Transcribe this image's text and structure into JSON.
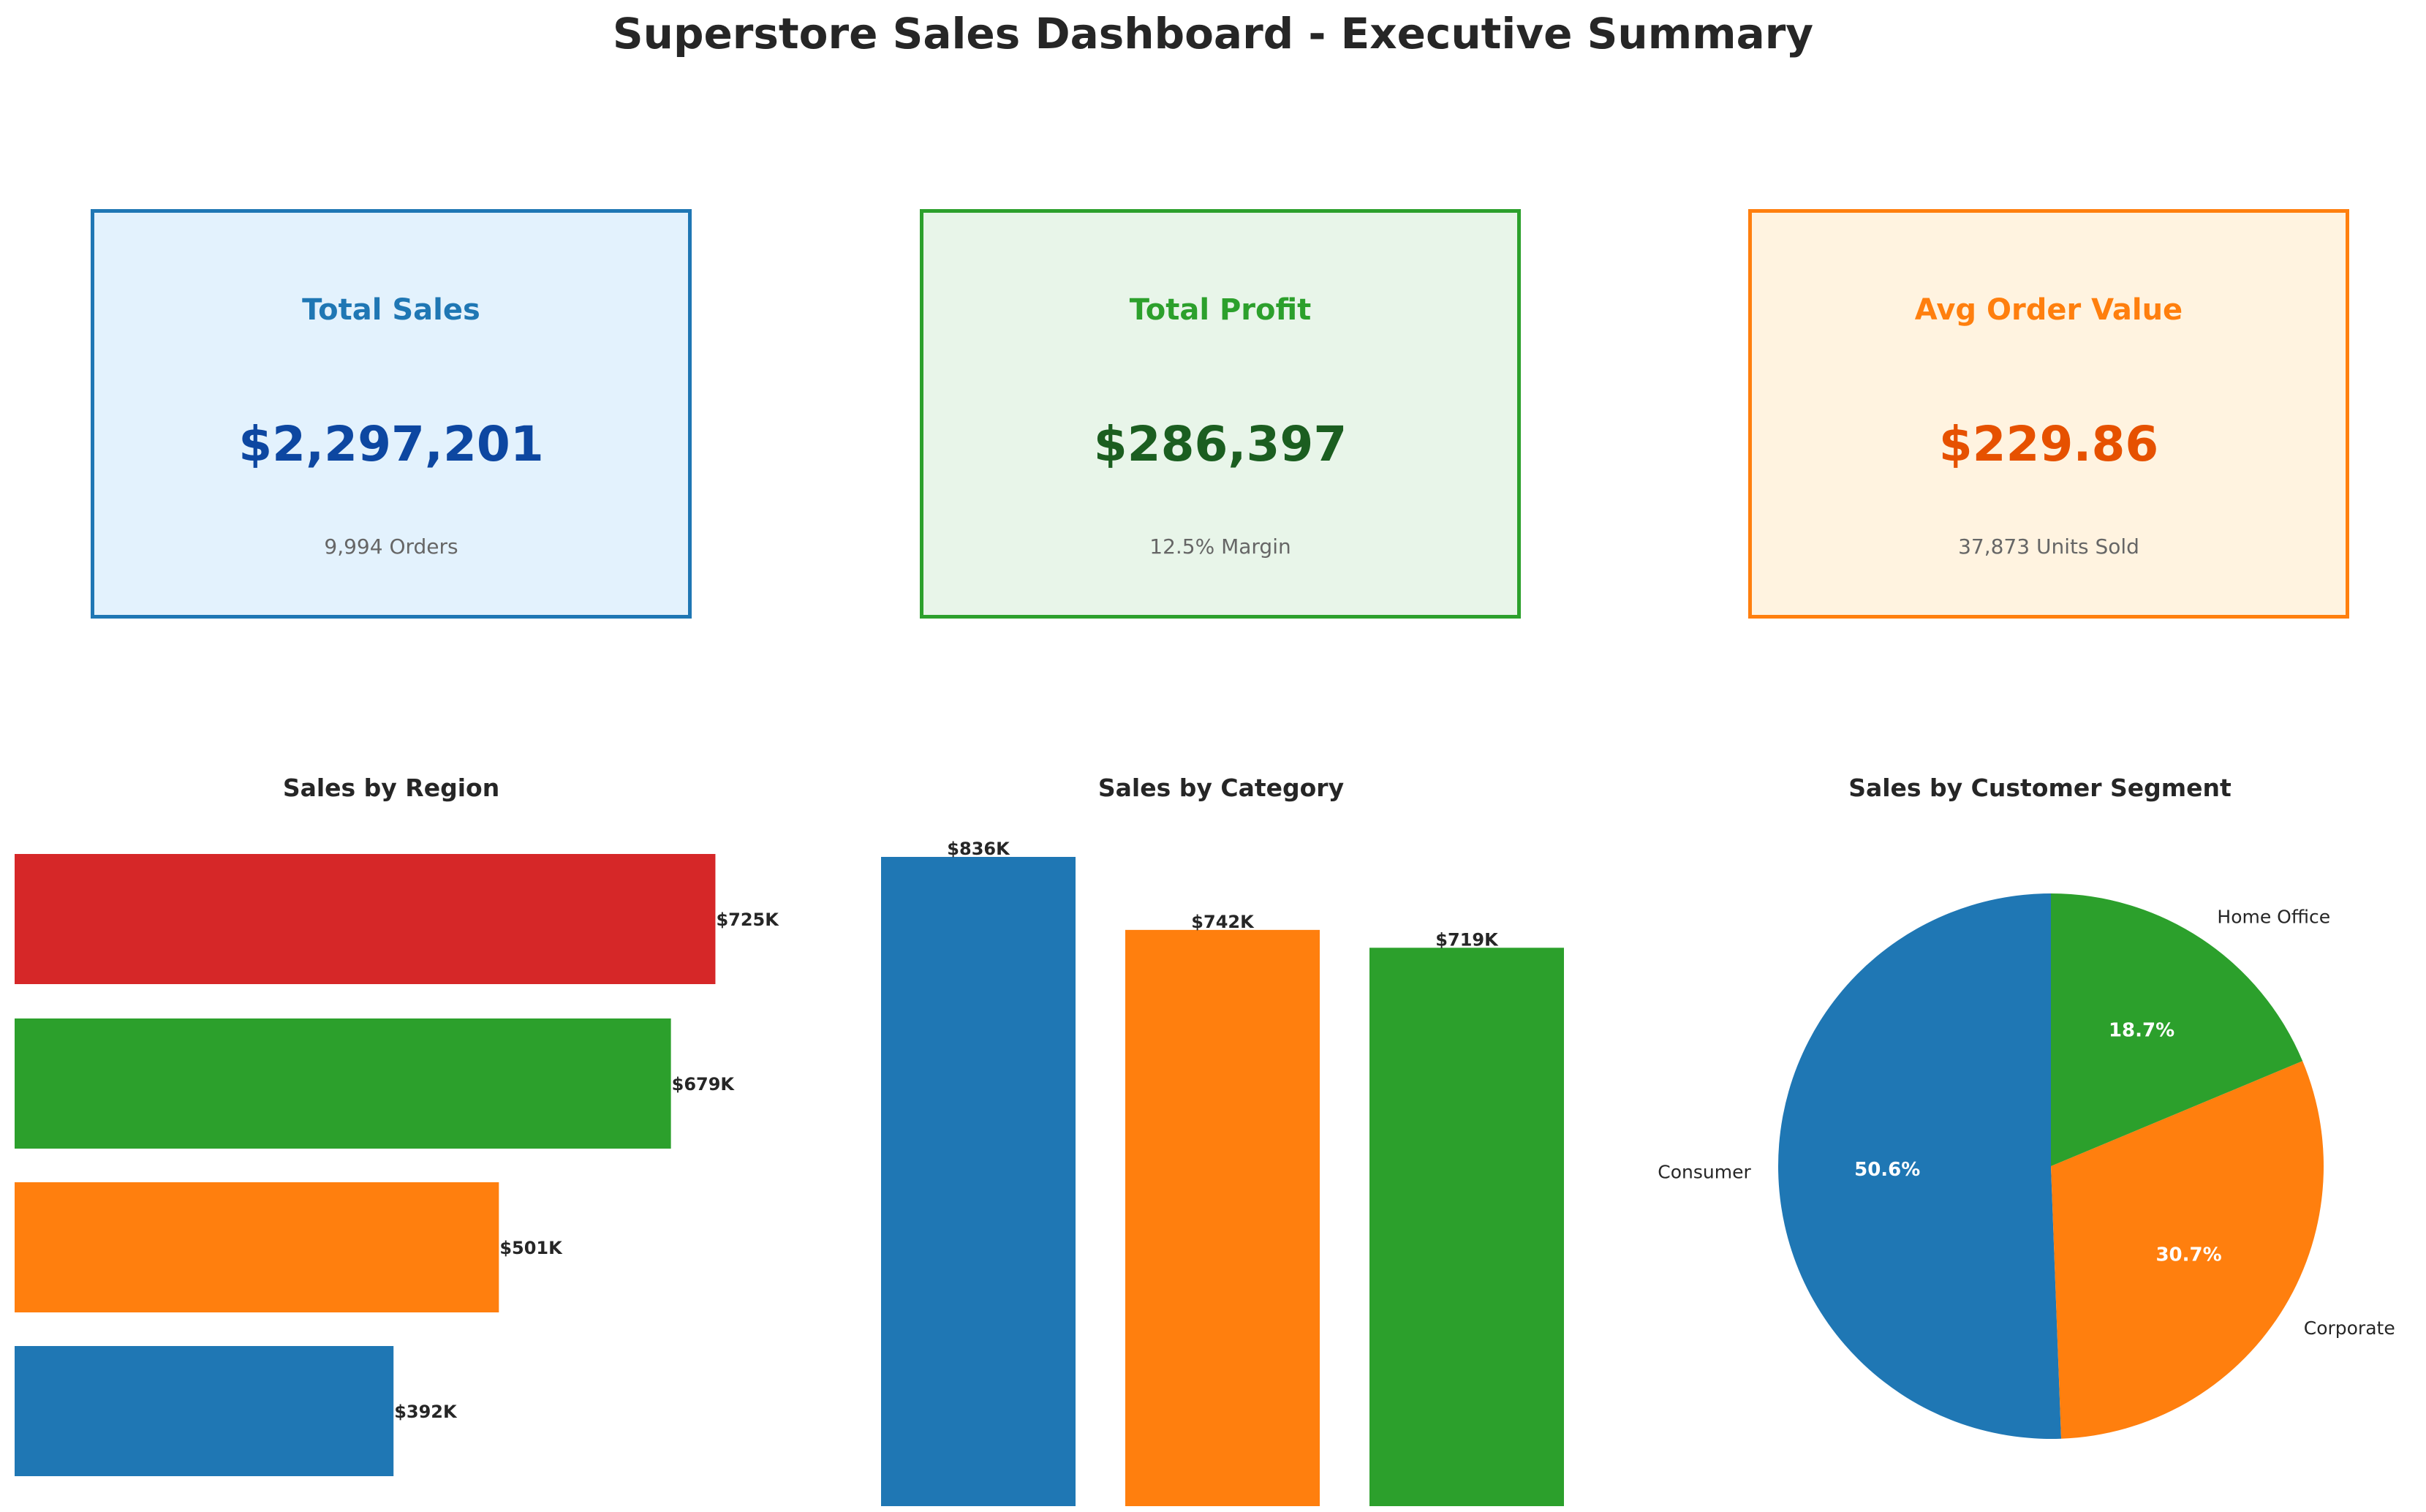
{
  "header": {
    "title": "Superstore Sales Dashboard - Executive Summary"
  },
  "kpis": [
    {
      "title": "Total Sales",
      "value": "$2,297,201",
      "sub": "9,994 Orders",
      "title_color": "#1f77b4",
      "value_color": "#0d47a1",
      "border_color": "#1f77b4",
      "bg_color": "#e3f2fd"
    },
    {
      "title": "Total Profit",
      "value": "$286,397",
      "sub": "12.5% Margin",
      "title_color": "#2ca02c",
      "value_color": "#1b5e20",
      "border_color": "#2ca02c",
      "bg_color": "#e8f5e9"
    },
    {
      "title": "Avg Order Value",
      "value": "$229.86",
      "sub": "37,873 Units Sold",
      "title_color": "#ff7f0e",
      "value_color": "#e65100",
      "border_color": "#ff7f0e",
      "bg_color": "#fff3e0"
    }
  ],
  "chart_data": [
    {
      "type": "bar",
      "orientation": "horizontal",
      "title": "Sales by Region",
      "values": [
        725,
        679,
        501,
        392
      ],
      "value_labels": [
        "$725K",
        "$679K",
        "$501K",
        "$392K"
      ],
      "colors": [
        "#d62728",
        "#2ca02c",
        "#ff7f0e",
        "#1f77b4"
      ],
      "axes_visible": false
    },
    {
      "type": "bar",
      "title": "Sales by Category",
      "values": [
        836,
        742,
        719
      ],
      "value_labels": [
        "$836K",
        "$742K",
        "$719K"
      ],
      "colors": [
        "#1f77b4",
        "#ff7f0e",
        "#2ca02c"
      ],
      "axes_visible": false
    },
    {
      "type": "pie",
      "title": "Sales by Customer Segment",
      "categories": [
        "Consumer",
        "Corporate",
        "Home Office"
      ],
      "values": [
        50.6,
        30.7,
        18.7
      ],
      "pct_labels": [
        "50.6%",
        "30.7%",
        "18.7%"
      ],
      "colors": [
        "#1f77b4",
        "#ff7f0e",
        "#2ca02c"
      ],
      "start_angle": 90
    }
  ]
}
